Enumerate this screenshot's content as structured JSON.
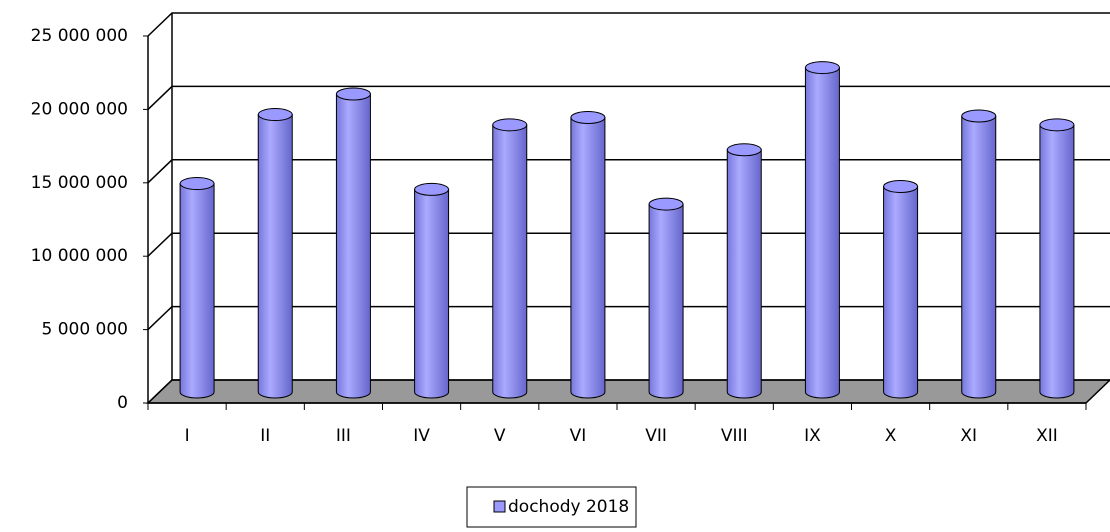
{
  "chart_data": {
    "type": "bar",
    "categories": [
      "I",
      "II",
      "III",
      "IV",
      "V",
      "VI",
      "VII",
      "VIII",
      "IX",
      "X",
      "XI",
      "XII"
    ],
    "series": [
      {
        "name": "dochody 2018",
        "color": "#9999ff",
        "values": [
          14200000,
          18900000,
          20300000,
          13800000,
          18200000,
          18700000,
          12800000,
          16500000,
          22100000,
          14000000,
          18800000,
          18200000
        ]
      }
    ],
    "ylim": [
      0,
      25000000
    ],
    "yticks": [
      {
        "value": 0,
        "label": "0"
      },
      {
        "value": 5000000,
        "label": "5 000 000"
      },
      {
        "value": 10000000,
        "label": "10 000 000"
      },
      {
        "value": 15000000,
        "label": "15 000 000"
      },
      {
        "value": 20000000,
        "label": "20 000 000"
      },
      {
        "value": 25000000,
        "label": "25 000 000"
      }
    ],
    "grid": true,
    "legend": "bottom"
  }
}
